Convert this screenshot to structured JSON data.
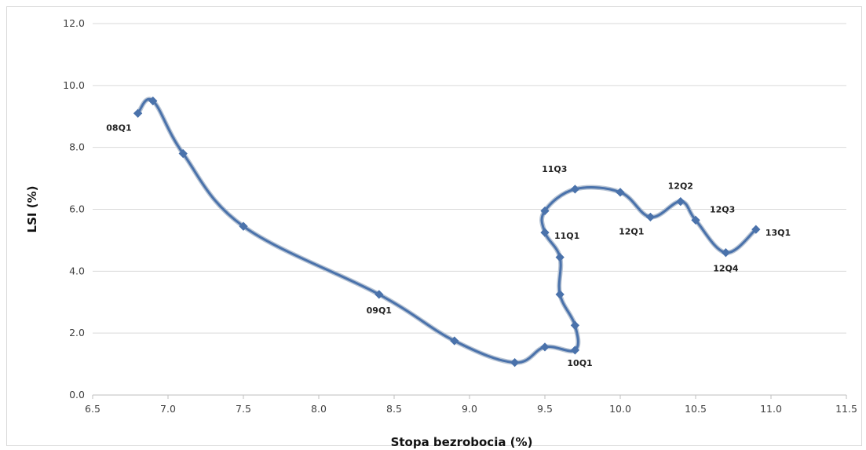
{
  "chart_data": {
    "type": "scatter",
    "xlabel": "Stopa bezrobocia (%)",
    "ylabel": "LSI (%)",
    "xlim": [
      6.5,
      11.5
    ],
    "ylim": [
      0,
      12
    ],
    "x_ticks": [
      "6.5",
      "7.0",
      "7.5",
      "8.0",
      "8.5",
      "9.0",
      "9.5",
      "10.0",
      "10.5",
      "11.0",
      "11.5"
    ],
    "y_ticks": [
      "0.0",
      "2.0",
      "4.0",
      "6.0",
      "8.0",
      "10.0",
      "12.0"
    ],
    "grid": "horizontal",
    "series_color": "#4a72ab",
    "points": [
      {
        "x": 6.8,
        "y": 9.1
      },
      {
        "x": 6.9,
        "y": 9.5
      },
      {
        "x": 7.1,
        "y": 7.8
      },
      {
        "x": 7.5,
        "y": 5.45
      },
      {
        "x": 8.4,
        "y": 3.25
      },
      {
        "x": 8.9,
        "y": 1.75
      },
      {
        "x": 9.3,
        "y": 1.05
      },
      {
        "x": 9.5,
        "y": 1.55
      },
      {
        "x": 9.7,
        "y": 1.45
      },
      {
        "x": 9.7,
        "y": 2.25
      },
      {
        "x": 9.6,
        "y": 3.25
      },
      {
        "x": 9.6,
        "y": 4.45
      },
      {
        "x": 9.5,
        "y": 5.25
      },
      {
        "x": 9.5,
        "y": 5.95
      },
      {
        "x": 9.7,
        "y": 6.65
      },
      {
        "x": 10.0,
        "y": 6.55
      },
      {
        "x": 10.2,
        "y": 5.75
      },
      {
        "x": 10.4,
        "y": 6.25
      },
      {
        "x": 10.5,
        "y": 5.65
      },
      {
        "x": 10.7,
        "y": 4.6
      },
      {
        "x": 10.9,
        "y": 5.35
      }
    ],
    "annotations": [
      {
        "text": "08Q1",
        "x": 6.8,
        "y": 9.1,
        "pos": "below-left"
      },
      {
        "text": "09Q1",
        "x": 8.4,
        "y": 3.25,
        "pos": "below"
      },
      {
        "text": "10Q1",
        "x": 9.7,
        "y": 1.45,
        "pos": "below-right"
      },
      {
        "text": "11Q1",
        "x": 9.5,
        "y": 5.25,
        "pos": "right"
      },
      {
        "text": "11Q3",
        "x": 9.7,
        "y": 6.65,
        "pos": "above-left"
      },
      {
        "text": "12Q1",
        "x": 10.2,
        "y": 5.75,
        "pos": "below-left"
      },
      {
        "text": "12Q2",
        "x": 10.4,
        "y": 6.25,
        "pos": "above"
      },
      {
        "text": "12Q3",
        "x": 10.5,
        "y": 5.65,
        "pos": "above-right"
      },
      {
        "text": "12Q4",
        "x": 10.7,
        "y": 4.6,
        "pos": "below"
      },
      {
        "text": "13Q1",
        "x": 10.9,
        "y": 5.35,
        "pos": "right"
      }
    ]
  }
}
